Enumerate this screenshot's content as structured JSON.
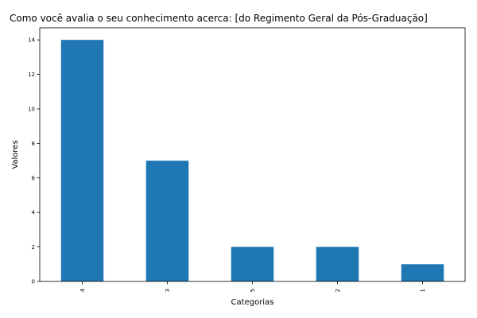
{
  "chart_data": {
    "type": "bar",
    "title": "Como você avalia o seu conhecimento acerca: [do Regimento Geral da Pós-Graduação]",
    "xlabel": "Categorias",
    "ylabel": "Valores",
    "categories": [
      "4",
      "3",
      "5",
      "2",
      "1"
    ],
    "values": [
      14,
      7,
      2,
      2,
      1
    ],
    "ylim": [
      0,
      14.7
    ],
    "yticks": [
      "0",
      "2",
      "4",
      "6",
      "8",
      "10",
      "12",
      "14"
    ],
    "grid": false,
    "legend": "none",
    "bar_color": "#1f77b4"
  }
}
